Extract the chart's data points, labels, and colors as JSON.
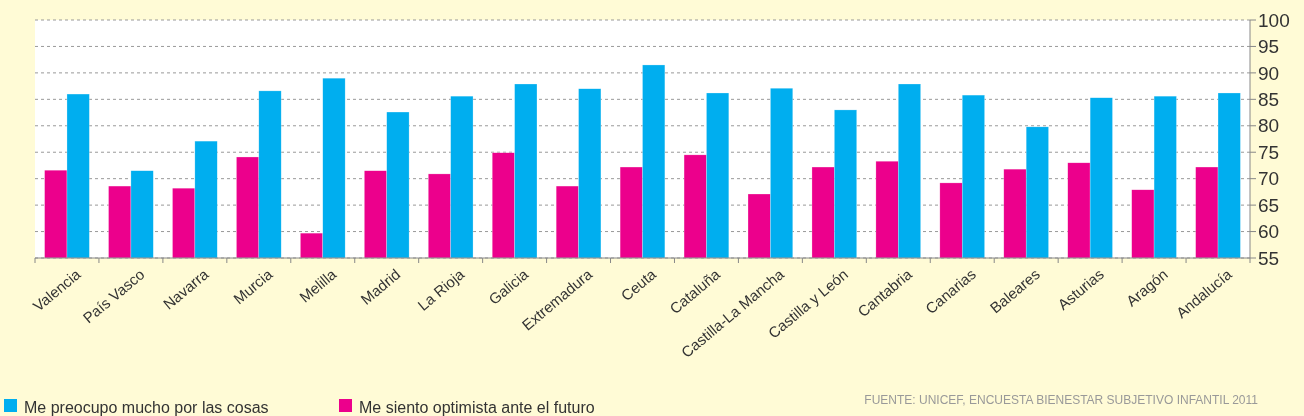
{
  "chart_data": {
    "type": "bar",
    "categories": [
      "Valencia",
      "País Vasco",
      "Navarra",
      "Murcia",
      "Melilla",
      "Madrid",
      "La Rioja",
      "Galicia",
      "Extremadura",
      "Ceuta",
      "Cataluña",
      "Castilla-La Mancha",
      "Castilla y León",
      "Cantabria",
      "Canarias",
      "Baleares",
      "Asturias",
      "Aragón",
      "Andalucía"
    ],
    "series": [
      {
        "name": "Me siento optimista ante el futuro",
        "color": "#ec008c",
        "values": [
          71.6,
          68.6,
          68.2,
          74.1,
          59.7,
          71.5,
          70.9,
          74.9,
          68.6,
          72.2,
          74.5,
          67.1,
          72.2,
          73.3,
          69.2,
          71.8,
          73.0,
          67.9,
          72.2
        ]
      },
      {
        "name": "Me preocupo mucho por las cosas",
        "color": "#00aeef",
        "values": [
          86.0,
          71.5,
          77.1,
          86.6,
          89.0,
          82.6,
          85.6,
          87.9,
          87.0,
          91.5,
          86.2,
          87.1,
          83.0,
          87.9,
          85.8,
          79.8,
          85.3,
          85.6,
          86.2
        ]
      }
    ],
    "ylim": [
      55,
      100
    ],
    "yticks": [
      55,
      60,
      65,
      70,
      75,
      80,
      85,
      90,
      95,
      100
    ],
    "grid": "y",
    "legend": "bottom left",
    "annotations": [
      "FUENTE: UNICEF, ENCUESTA BIENESTAR SUBJETIVO INFANTIL 2011"
    ]
  }
}
